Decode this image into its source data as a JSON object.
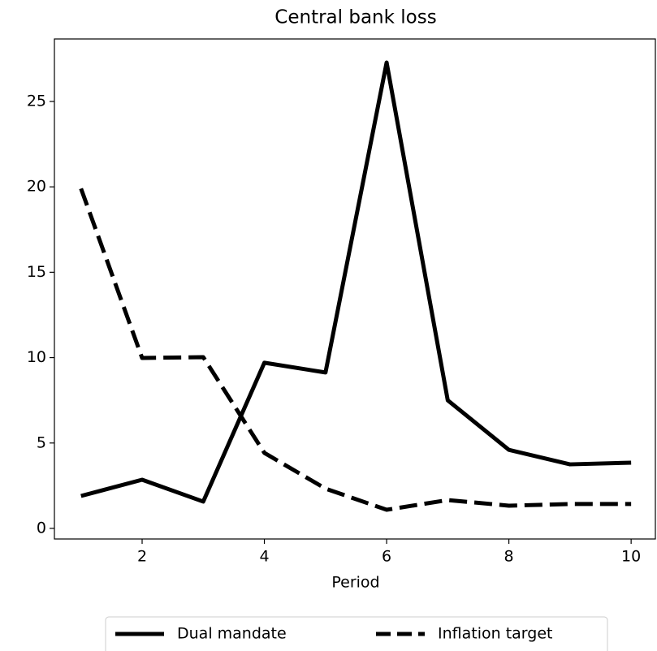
{
  "chart_data": {
    "type": "line",
    "title": "Central bank loss",
    "x_label": "Period",
    "x": [
      1,
      2,
      3,
      4,
      5,
      6,
      7,
      8,
      9,
      10
    ],
    "series": [
      {
        "name": "Dual mandate",
        "color": "#000000",
        "linestyle": "solid",
        "values": [
          1.9,
          2.85,
          1.57,
          9.7,
          9.13,
          27.28,
          7.5,
          4.6,
          3.75,
          3.85
        ]
      },
      {
        "name": "Inflation target",
        "color": "#000000",
        "linestyle": "dashed",
        "values": [
          19.9,
          9.98,
          10.03,
          4.42,
          2.33,
          1.09,
          1.66,
          1.33,
          1.43,
          1.43
        ]
      }
    ],
    "xlim": [
      0.565,
      10.41
    ],
    "xticks": [
      2,
      4,
      6,
      8,
      10
    ],
    "ylim": [
      -0.62,
      28.66
    ],
    "yticks": [
      0,
      5,
      10,
      15,
      20,
      25
    ],
    "grid": false,
    "legend": "below"
  }
}
